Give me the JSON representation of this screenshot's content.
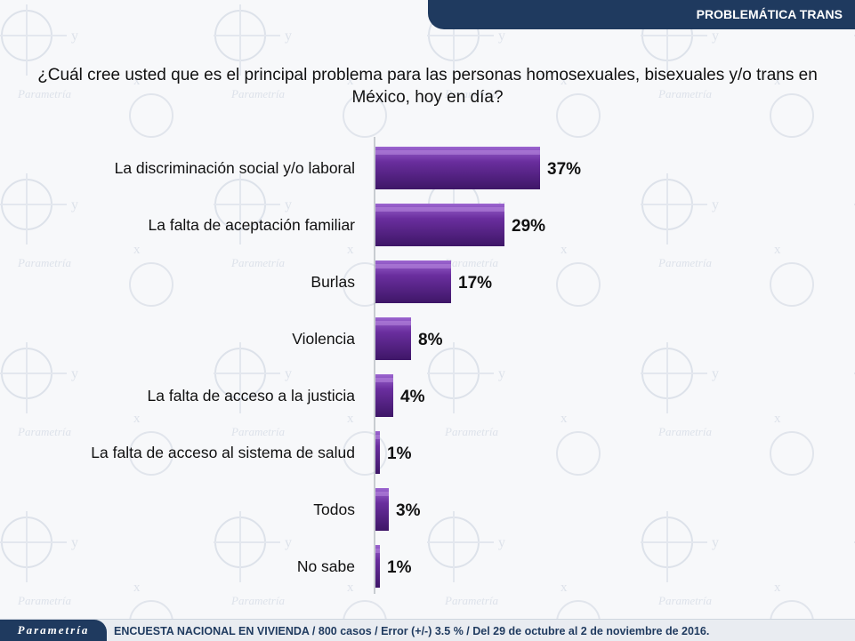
{
  "header": {
    "title": "PROBLEMÁTICA TRANS"
  },
  "question": "¿Cuál cree usted que es el principal problema para las personas homosexuales, bisexuales y/o trans en México, hoy en día?",
  "footer": {
    "logo": "Parametría",
    "note": "ENCUESTA NACIONAL EN VIVIENDA / 800 casos / Error (+/-) 3.5 % / Del 29 de octubre al 2 de noviembre de 2016."
  },
  "colors": {
    "bar": "#6a2e9e",
    "bar_dark": "#3e1667",
    "bar_light": "#9b65cf",
    "header": "#1f3a5f"
  },
  "chart_data": {
    "type": "bar",
    "orientation": "horizontal",
    "categories": [
      "La discriminación social y/o laboral",
      "La falta de aceptación familiar",
      "Burlas",
      "Violencia",
      "La falta de acceso a la justicia",
      "La falta de acceso al sistema de salud",
      "Todos",
      "No sabe"
    ],
    "values": [
      37,
      29,
      17,
      8,
      4,
      1,
      3,
      1
    ],
    "value_labels": [
      "37%",
      "29%",
      "17%",
      "8%",
      "4%",
      "1%",
      "3%",
      "1%"
    ],
    "xlim": [
      0,
      40
    ],
    "grid": false,
    "legend": "none"
  }
}
